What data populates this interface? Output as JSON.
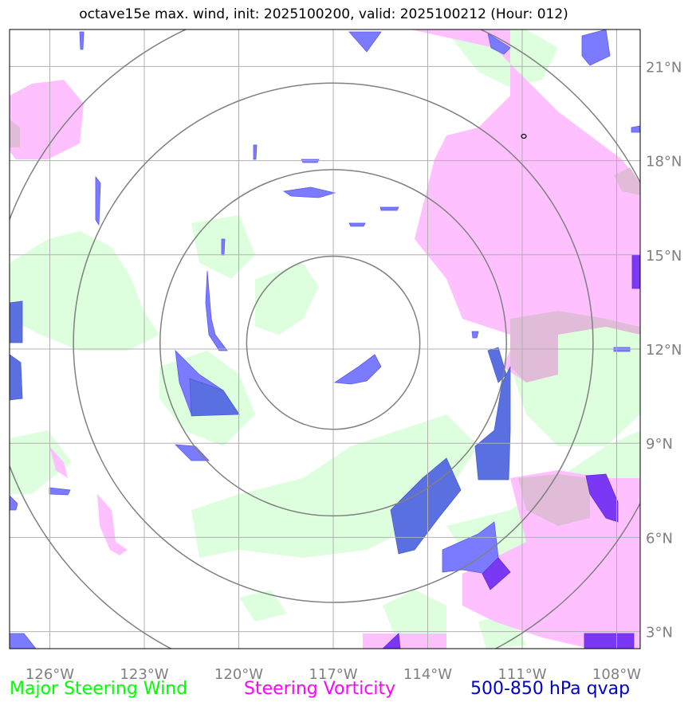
{
  "title": "octave15e max. wind, init: 2025100200, valid: 2025100212 (Hour: 012)",
  "map": {
    "lon_labels": [
      "126°W",
      "123°W",
      "120°W",
      "117°W",
      "114°W",
      "111°W",
      "108°W"
    ],
    "lat_labels": [
      "21°N",
      "18°N",
      "15°N",
      "12°N",
      "9°N",
      "6°N",
      "3°N"
    ],
    "center": {
      "lon": -117.0,
      "lat": 12.2
    },
    "rings_deg": [
      2.75,
      5.5,
      8.25,
      11.0
    ],
    "colors": {
      "wind": "#ddffdd",
      "vorticity": "#ffc0ff",
      "overlap": "#e0bcd8",
      "qvap_light": "#7b7bff",
      "qvap_mid": "#5a6fe0",
      "qvap_dark": "#7a38f5",
      "ring": "#808080",
      "grid": "#b0b0b0"
    }
  },
  "legend": {
    "wind": "Major Steering Wind",
    "vorticity": "Steering Vorticity",
    "qvap": "500-850 hPa qvap"
  }
}
